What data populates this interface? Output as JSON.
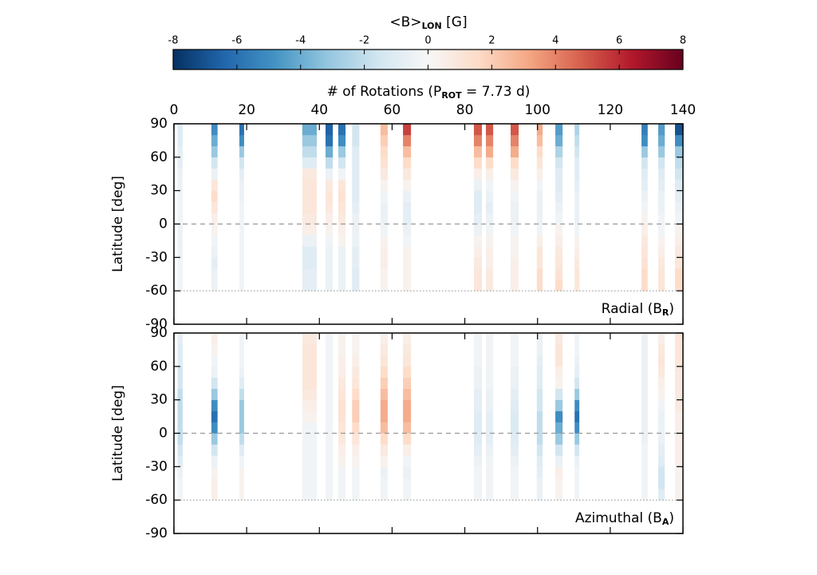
{
  "chart_data": [
    {
      "type": "colorbar",
      "title": [
        "<B>",
        "LON",
        " [G]"
      ],
      "xlim": [
        -8,
        8
      ],
      "xticks": [
        -8,
        -6,
        -4,
        -2,
        0,
        2,
        4,
        6,
        8
      ],
      "colormap": [
        "#053061",
        "#2166ac",
        "#4393c3",
        "#92c5de",
        "#d1e5f0",
        "#f7f7f7",
        "#fddbc7",
        "#f4a582",
        "#d6604d",
        "#b2182b",
        "#67001f"
      ]
    },
    {
      "type": "heatmap",
      "xlabel": [
        "# of Rotations (P",
        "ROT",
        " = 7.73 d)"
      ],
      "ylabel": "Latitude [deg]",
      "label": [
        "Radial (B",
        "R",
        ")"
      ],
      "xlim": [
        0,
        140
      ],
      "xticks": [
        0,
        20,
        40,
        60,
        80,
        100,
        120,
        140
      ],
      "ylim": [
        -90,
        90
      ],
      "yticks": [
        90,
        60,
        30,
        0,
        -30,
        -60,
        -90
      ],
      "lat_edges": [
        -60,
        -50,
        -40,
        -30,
        -20,
        -10,
        0,
        10,
        20,
        30,
        40,
        50,
        60,
        70,
        80,
        90
      ],
      "x": [
        [
          1,
          2.4
        ],
        [
          10.3,
          12
        ],
        [
          18,
          19.3
        ],
        [
          35.3,
          39.3
        ],
        [
          41.7,
          43.7
        ],
        [
          45.2,
          47.2
        ],
        [
          49,
          51
        ],
        [
          56.8,
          58.8
        ],
        [
          63,
          65.2
        ],
        [
          82.5,
          84.7
        ],
        [
          85.8,
          87.8
        ],
        [
          92.6,
          94.8
        ],
        [
          99.8,
          101.4
        ],
        [
          104.9,
          106.9
        ],
        [
          110.2,
          111.5
        ],
        [
          128.6,
          130.3
        ],
        [
          133.2,
          135
        ],
        [
          137.8,
          140
        ]
      ],
      "values": [
        [
          -0.3,
          -0.3,
          -0.3,
          -0.5,
          -0.5,
          -0.5,
          -0.3,
          -0.3,
          -0.3,
          -0.5,
          -0.5,
          -0.8,
          -0.8,
          -1,
          -1
        ],
        [
          -0.5,
          -0.5,
          -0.8,
          -0.5,
          -0.3,
          0.3,
          0.5,
          1,
          1.5,
          1,
          -0.5,
          -1.5,
          -3,
          -4,
          -5
        ],
        [
          -0.3,
          -0.3,
          -0.3,
          -0.3,
          -0.3,
          -0.3,
          -0.3,
          -0.3,
          -0.5,
          -0.5,
          -0.8,
          -1.5,
          -3,
          -5,
          -6
        ],
        [
          -0.8,
          -0.8,
          -1,
          -1,
          -0.5,
          0.5,
          0.8,
          1,
          1,
          1,
          0.8,
          -1,
          -2,
          -3,
          -4
        ],
        [
          -0.5,
          -0.5,
          -0.5,
          -0.5,
          -0.3,
          0.3,
          0.5,
          0.8,
          1,
          0.8,
          -0.5,
          -2,
          -4,
          -6,
          -6.5
        ],
        [
          -0.5,
          -0.5,
          -0.5,
          -0.5,
          0.3,
          0.5,
          0.8,
          1,
          1.2,
          1,
          -0.3,
          -1.5,
          -3,
          -5,
          -6
        ],
        [
          -1,
          -1,
          -0.8,
          -0.8,
          -0.5,
          -0.5,
          -0.5,
          -0.8,
          -1,
          -1,
          -1,
          -1,
          -1,
          -1.5,
          -1.5
        ],
        [
          0.3,
          0.3,
          0.5,
          0.5,
          0.3,
          -0.3,
          -0.5,
          -0.5,
          -0.3,
          0.3,
          0.8,
          1.2,
          1.5,
          2,
          2.5
        ],
        [
          0.3,
          0.3,
          0.3,
          0.3,
          -0.3,
          -0.5,
          -0.8,
          -0.8,
          -0.5,
          0.3,
          0.8,
          1.5,
          2.5,
          4,
          5.5
        ],
        [
          1,
          1,
          0.8,
          0.5,
          0.3,
          -0.5,
          -0.8,
          -1,
          -1,
          -0.5,
          0.5,
          1.5,
          2.5,
          4,
          5
        ],
        [
          0.8,
          0.8,
          0.5,
          0.5,
          0.3,
          -0.3,
          -0.5,
          -0.8,
          -0.5,
          -0.3,
          0.5,
          1.5,
          3,
          4,
          5
        ],
        [
          0.5,
          0.5,
          0.5,
          0.3,
          0.3,
          -0.3,
          -0.5,
          -0.5,
          -0.3,
          0.3,
          0.8,
          1.5,
          3,
          4,
          5
        ],
        [
          1.5,
          1.5,
          1,
          1,
          0.5,
          -0.3,
          -0.5,
          -0.5,
          -0.5,
          -0.3,
          0.5,
          1,
          1.5,
          2.5,
          3
        ],
        [
          1.5,
          1.2,
          1,
          0.8,
          0.5,
          0.3,
          -0.3,
          -0.5,
          -0.8,
          -1,
          -1,
          -1.5,
          -2.5,
          -4,
          -4.5
        ],
        [
          1,
          1,
          0.8,
          0.5,
          0.3,
          -0.3,
          -0.5,
          -0.5,
          -0.5,
          -0.8,
          -1,
          -1,
          -1.5,
          -2,
          -2.5
        ],
        [
          1.5,
          1.5,
          1.2,
          1,
          0.8,
          0.5,
          0.3,
          -0.3,
          -0.5,
          -0.8,
          -1,
          -1.5,
          -3,
          -5,
          -5.5
        ],
        [
          1,
          1,
          0.8,
          0.5,
          0.3,
          -0.3,
          -0.3,
          -0.5,
          -0.5,
          -0.8,
          -1,
          -1.5,
          -3,
          -4,
          -4.5
        ],
        [
          1.5,
          1.5,
          1,
          0.8,
          0.5,
          0.3,
          -0.3,
          -0.5,
          -0.8,
          -1,
          -1.5,
          -2,
          -3,
          -5,
          -7
        ]
      ]
    },
    {
      "type": "heatmap",
      "ylabel": "Latitude [deg]",
      "label": [
        "Azimuthal (B",
        "A",
        ")"
      ],
      "xlim": [
        0,
        140
      ],
      "xticks": [
        0,
        20,
        40,
        60,
        80,
        100,
        120,
        140
      ],
      "ylim": [
        -90,
        90
      ],
      "yticks": [
        90,
        60,
        30,
        0,
        -30,
        -60,
        -90
      ],
      "lat_edges": [
        -60,
        -50,
        -40,
        -30,
        -20,
        -10,
        0,
        10,
        20,
        30,
        40,
        50,
        60,
        70,
        80,
        90
      ],
      "x": [
        [
          1,
          2.4
        ],
        [
          10.3,
          12
        ],
        [
          18,
          19.3
        ],
        [
          35.3,
          39.3
        ],
        [
          41.7,
          43.7
        ],
        [
          45.2,
          47.2
        ],
        [
          49,
          51
        ],
        [
          56.8,
          58.8
        ],
        [
          63,
          65.2
        ],
        [
          82.5,
          84.7
        ],
        [
          85.8,
          87.8
        ],
        [
          92.6,
          94.8
        ],
        [
          99.8,
          101.4
        ],
        [
          104.9,
          106.9
        ],
        [
          110.2,
          111.5
        ],
        [
          128.6,
          130.3
        ],
        [
          133.2,
          135
        ],
        [
          137.8,
          140
        ]
      ],
      "values": [
        [
          -0.3,
          -0.3,
          -0.5,
          -1,
          -1.5,
          -2,
          -2,
          -2,
          -2,
          -2,
          -1.5,
          -1.5,
          -1,
          -1,
          -0.8
        ],
        [
          0.5,
          0.5,
          0.3,
          -0.5,
          -1.5,
          -3,
          -5,
          -6,
          -5,
          -3,
          -1.5,
          -0.5,
          -0.3,
          0.3,
          0.5
        ],
        [
          0.3,
          0.3,
          0.3,
          -0.3,
          -1,
          -2,
          -3,
          -3,
          -3,
          -2,
          -1,
          -0.5,
          -0.3,
          -0.3,
          -0.3
        ],
        [
          -0.3,
          -0.3,
          -0.3,
          -0.3,
          -0.3,
          -0.3,
          -0.3,
          0.3,
          0.5,
          0.8,
          1,
          1,
          1,
          1,
          0.8
        ],
        [
          -0.3,
          -0.3,
          -0.3,
          -0.3,
          -0.3,
          -0.3,
          -0.3,
          -0.3,
          -0.3,
          -0.3,
          -0.3,
          -0.3,
          -0.3,
          -0.3,
          -0.3
        ],
        [
          -0.3,
          -0.3,
          -0.3,
          0.3,
          0.5,
          0.8,
          1,
          1.2,
          1.2,
          1,
          0.8,
          0.5,
          0.5,
          0.3,
          0.3
        ],
        [
          -0.3,
          -0.3,
          -0.3,
          0.3,
          0.5,
          1,
          1.5,
          2,
          2,
          1.5,
          1,
          0.8,
          0.5,
          0.3,
          0.3
        ],
        [
          -0.3,
          -0.3,
          -0.5,
          0.3,
          0.8,
          1.5,
          2.5,
          3,
          3,
          2.5,
          2,
          1.5,
          1,
          0.8,
          0.5
        ],
        [
          -0.3,
          -0.3,
          -0.5,
          -0.3,
          0.5,
          1.5,
          2.5,
          3,
          3,
          2.5,
          2,
          1.5,
          1,
          0.8,
          0.5
        ],
        [
          -0.3,
          -0.3,
          -0.3,
          -0.5,
          -0.8,
          -1,
          -1,
          -1,
          -0.8,
          -0.8,
          -0.5,
          -0.5,
          -0.3,
          -0.3,
          -0.3
        ],
        [
          -0.3,
          -0.3,
          -0.3,
          -0.3,
          -0.5,
          -0.8,
          -0.8,
          -0.8,
          -0.5,
          -0.5,
          -0.3,
          -0.3,
          -0.3,
          -0.3,
          -0.3
        ],
        [
          -0.3,
          -0.3,
          -0.3,
          -0.5,
          -0.8,
          -1,
          -1.2,
          -1.2,
          -1,
          -0.8,
          -0.5,
          -0.5,
          -0.3,
          -0.3,
          -0.3
        ],
        [
          -0.5,
          -0.5,
          -0.8,
          -1,
          -1.5,
          -2,
          -2,
          -2,
          -1.5,
          -1.5,
          -1,
          -1,
          -0.8,
          -0.5,
          -0.5
        ],
        [
          0.3,
          0.3,
          0.5,
          -0.5,
          -1.5,
          -3,
          -4,
          -5,
          -3,
          -1.5,
          0.3,
          0.5,
          1,
          1,
          0.8
        ],
        [
          -0.3,
          -0.3,
          -0.3,
          -0.5,
          -1.5,
          -3,
          -5,
          -6,
          -5,
          -3,
          -1.5,
          -0.8,
          -0.5,
          -0.3,
          -0.3
        ],
        [
          -0.3,
          -0.3,
          -0.3,
          -0.3,
          -0.3,
          -0.5,
          -0.5,
          -0.5,
          -0.5,
          -0.5,
          -0.5,
          -0.5,
          -0.5,
          -0.5,
          -0.5
        ],
        [
          -1,
          -1.5,
          -1.5,
          -1,
          -0.8,
          -0.5,
          -0.5,
          -0.5,
          -0.3,
          0.3,
          0.5,
          0.8,
          1,
          0.8,
          0.5
        ],
        [
          0.3,
          0.3,
          0.3,
          0.5,
          0.5,
          0.5,
          0.5,
          0.5,
          0.8,
          0.8,
          0.8,
          0.8,
          1,
          1,
          1
        ]
      ]
    }
  ]
}
